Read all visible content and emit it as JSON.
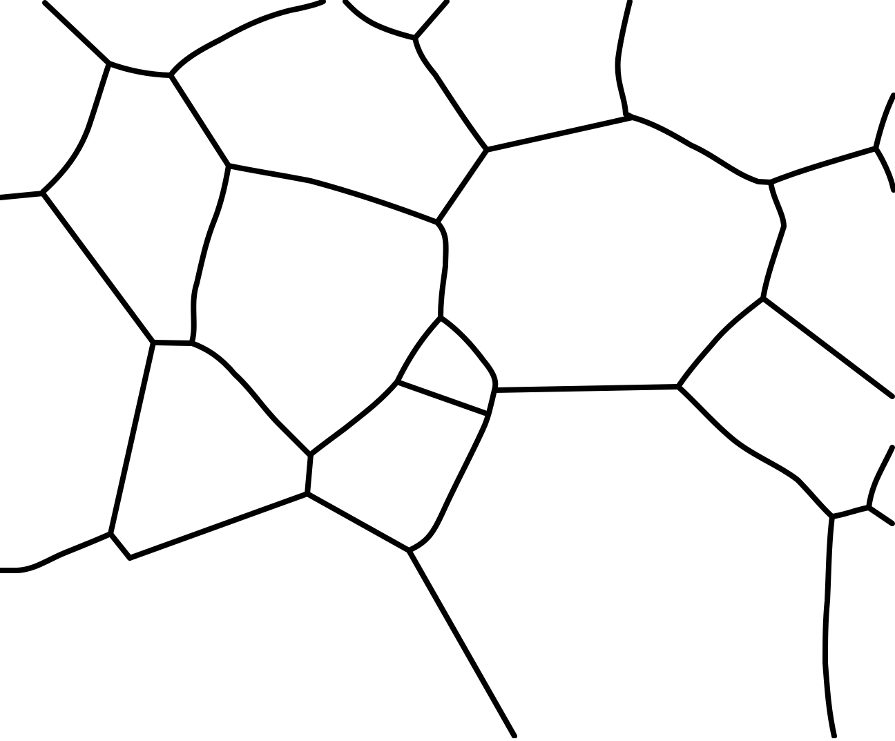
{
  "image": {
    "background_color": "#ffffff",
    "line_color": "#000000"
  }
}
